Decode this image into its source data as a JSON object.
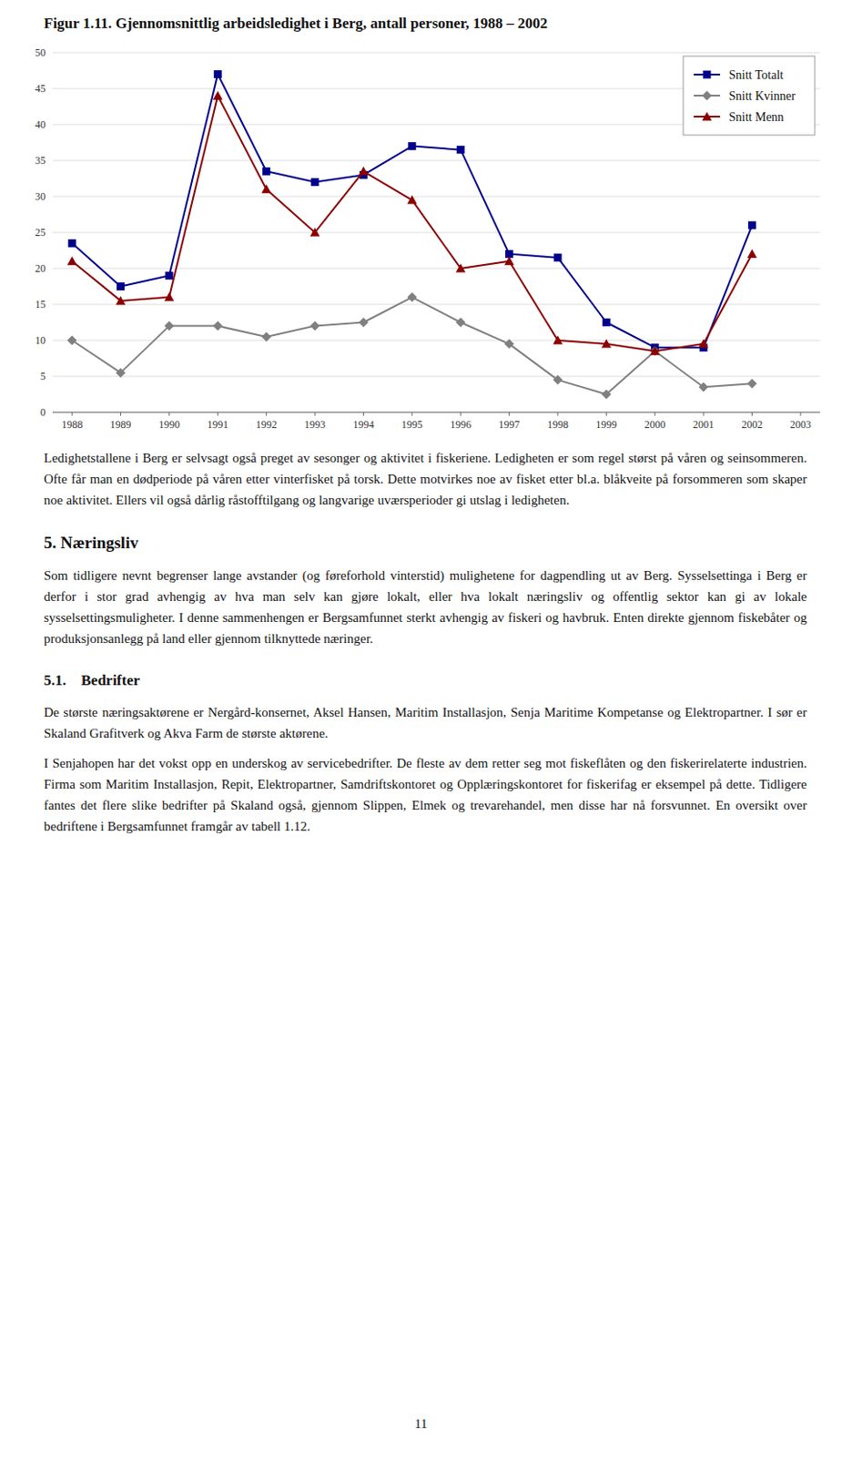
{
  "chart_data": {
    "type": "line",
    "title": "Figur 1.11. Gjennomsnittlig arbeidsledighet i Berg, antall personer, 1988 – 2002",
    "x": [
      1988,
      1989,
      1990,
      1991,
      1992,
      1993,
      1994,
      1995,
      1996,
      1997,
      1998,
      1999,
      2000,
      2001,
      2002
    ],
    "xlim": [
      1987.6,
      2003.4
    ],
    "xticks": [
      1988,
      1989,
      1990,
      1991,
      1992,
      1993,
      1994,
      1995,
      1996,
      1997,
      1998,
      1999,
      2000,
      2001,
      2002,
      2003
    ],
    "ylim": [
      0,
      50
    ],
    "yticks": [
      0,
      5,
      10,
      15,
      20,
      25,
      30,
      35,
      40,
      45,
      50
    ],
    "grid": true,
    "legend": "upper right",
    "series": [
      {
        "name": "Snitt Totalt",
        "color": "#00008B",
        "marker": "square",
        "values": [
          23.5,
          17.5,
          19.0,
          47.0,
          33.5,
          32.0,
          33.0,
          37.0,
          36.5,
          22.0,
          21.5,
          12.5,
          9.0,
          9.0,
          26.0
        ]
      },
      {
        "name": "Snitt Kvinner",
        "color": "#808080",
        "marker": "diamond",
        "values": [
          10.0,
          5.5,
          12.0,
          12.0,
          10.5,
          12.0,
          12.5,
          16.0,
          12.5,
          9.5,
          4.5,
          2.5,
          8.5,
          3.5,
          4.0
        ]
      },
      {
        "name": "Snitt Menn",
        "color": "#8B0000",
        "marker": "triangle",
        "values": [
          21.0,
          15.5,
          16.0,
          44.0,
          31.0,
          25.0,
          33.5,
          29.5,
          20.0,
          21.0,
          10.0,
          9.5,
          8.5,
          9.5,
          22.0
        ]
      }
    ]
  },
  "body": [
    {
      "paragraph": "Ledighetstallene i Berg er selvsagt også preget av sesonger og aktivitet i fiskeriene. Ledigheten er som regel størst på våren og seinsommeren. Ofte får man en dødperiode på våren etter vinterfisket på torsk. Dette motvirkes noe av fisket etter bl.a. blåkveite på forsommeren som skaper noe aktivitet. Ellers vil også dårlig råstofftilgang og langvarige uværsperioder gi utslag i ledigheten."
    },
    {
      "heading": "5. Næringsliv"
    },
    {
      "paragraph": "Som tidligere nevnt begrenser lange avstander (og føreforhold vinterstid) mulighetene for dagpendling ut av Berg. Sysselsettinga i Berg er derfor i stor grad avhengig av hva man selv kan gjøre lokalt, eller hva lokalt næringsliv og offentlig sektor kan gi av lokale sysselsettingsmuligheter. I denne sammenhengen er Bergsamfunnet sterkt avhengig av fiskeri og havbruk. Enten direkte gjennom fiskebåter og produksjonsanlegg på land eller gjennom tilknyttede næringer."
    },
    {
      "subheading": "5.1.    Bedrifter"
    },
    {
      "paragraph": "De største næringsaktørene er Nergård-konsernet, Aksel Hansen, Maritim Installasjon, Senja Maritime Kompetanse og Elektropartner. I sør er Skaland Grafitverk og Akva Farm de største aktørene."
    },
    {
      "paragraph": "I Senjahopen har det vokst opp en underskog av servicebedrifter. De fleste av dem retter seg mot fiskeflåten og den fiskerirelaterte industrien. Firma som Maritim Installasjon, Repit, Elektropartner, Samdriftskontoret og Opplæringskontoret for fiskerifag er eksempel på dette. Tidligere fantes det flere slike bedrifter på Skaland også, gjennom Slippen, Elmek og trevarehandel, men disse har nå forsvunnet. En oversikt over bedriftene i Bergsamfunnet framgår av tabell 1.12."
    }
  ],
  "page_number": "11"
}
